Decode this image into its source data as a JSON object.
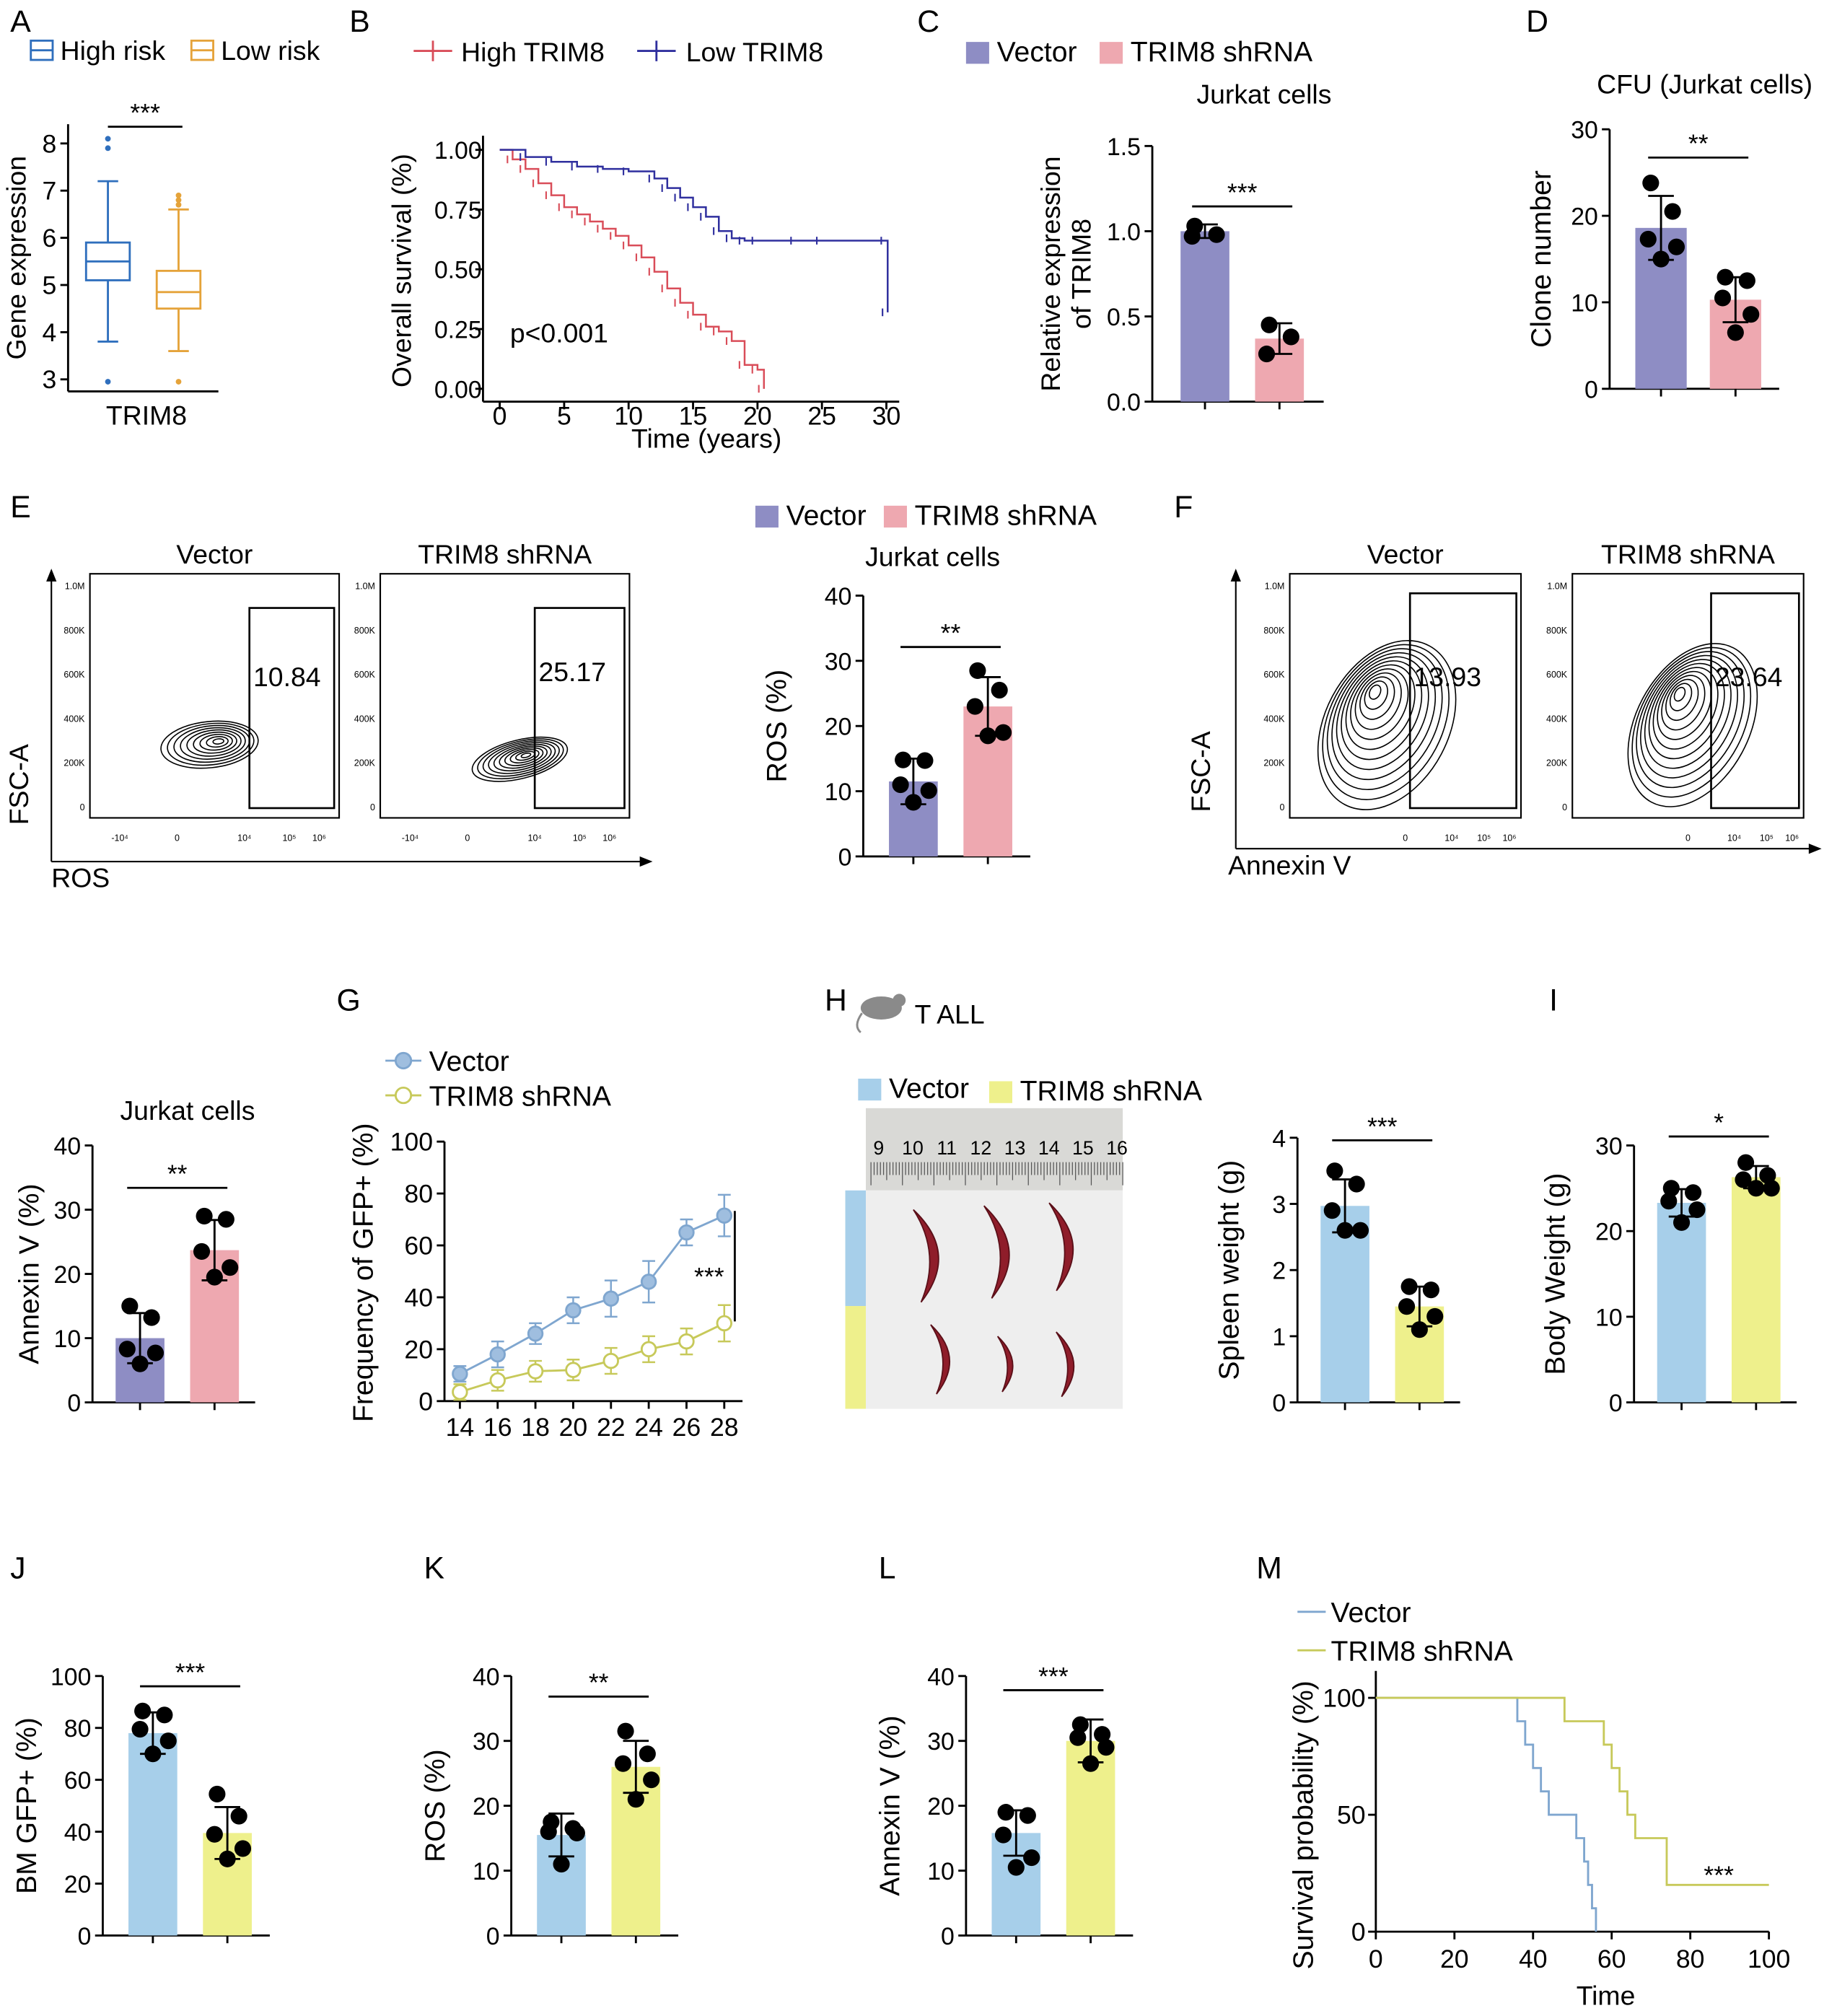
{
  "colors": {
    "purple": "#8e8dc4",
    "pink": "#eea8b0",
    "blue": "#a7cfea",
    "yellow": "#eef08c",
    "boxblue": "#2f6fbd",
    "boxorange": "#e5a33a",
    "kmred": "#d94d59",
    "kmblue": "#2f2f9e",
    "lineblue": "#7fa6cf",
    "lineyellow": "#c7c95a",
    "mred": "#8f1d2a"
  },
  "chart_data": [
    {
      "panel": "A",
      "type": "box",
      "legend": [
        "High risk",
        "Low risk"
      ],
      "ylabel": "Gene expression",
      "xlabel": "TRIM8",
      "ylim": [
        2.8,
        8.3
      ],
      "yticks": [
        "3",
        "4",
        "5",
        "6",
        "7",
        "8"
      ],
      "significance": "***",
      "boxes": [
        {
          "name": "High risk",
          "min": 3.8,
          "q1": 5.1,
          "median": 5.5,
          "q3": 5.9,
          "max": 7.2,
          "outliers": [
            8.1,
            7.9,
            2.95
          ]
        },
        {
          "name": "Low risk",
          "min": 3.6,
          "q1": 4.5,
          "median": 4.85,
          "q3": 5.3,
          "max": 6.6,
          "outliers": [
            6.9,
            6.8,
            6.7,
            2.95
          ]
        }
      ]
    },
    {
      "panel": "B",
      "type": "line",
      "legend": [
        "High TRIM8",
        "Low TRIM8"
      ],
      "ylabel": "Overall survival (%)",
      "xlabel": "Time (years)",
      "xticks": [
        "0",
        "5",
        "10",
        "15",
        "20",
        "25",
        "30"
      ],
      "yticks": [
        "0.00",
        "0.25",
        "0.50",
        "0.75",
        "1.00"
      ],
      "annotation": "p<0.001",
      "series": [
        {
          "name": "High TRIM8",
          "x": [
            0,
            1,
            2,
            3,
            4,
            5,
            6,
            7,
            8,
            9,
            10,
            11,
            12,
            13,
            14,
            15,
            16,
            17,
            18,
            19,
            20,
            20.5
          ],
          "y": [
            1.0,
            0.96,
            0.92,
            0.86,
            0.81,
            0.76,
            0.73,
            0.7,
            0.67,
            0.64,
            0.6,
            0.55,
            0.49,
            0.42,
            0.36,
            0.31,
            0.26,
            0.24,
            0.2,
            0.1,
            0.08,
            0.0
          ]
        },
        {
          "name": "Low TRIM8",
          "x": [
            0,
            2,
            4,
            6,
            8,
            10,
            12,
            13,
            14,
            15,
            16,
            17,
            18,
            19,
            20,
            23,
            25,
            30,
            30.1
          ],
          "y": [
            1.0,
            0.97,
            0.95,
            0.93,
            0.92,
            0.91,
            0.88,
            0.84,
            0.8,
            0.76,
            0.72,
            0.66,
            0.63,
            0.62,
            0.62,
            0.62,
            0.62,
            0.62,
            0.32
          ]
        }
      ]
    },
    {
      "panel": "C",
      "type": "bar",
      "title": "Jurkat cells",
      "legend": [
        "Vector",
        "TRIM8 shRNA"
      ],
      "ylabel": [
        "Relative expression",
        "of TRIM8"
      ],
      "yticks": [
        "0.0",
        "0.5",
        "1.0",
        "1.5"
      ],
      "ylim": [
        0,
        1.5
      ],
      "significance": "***",
      "values": [
        1.0,
        0.37
      ],
      "errors": [
        0.04,
        0.09
      ],
      "points": [
        [
          1.03,
          0.98,
          0.97
        ],
        [
          0.45,
          0.38,
          0.28
        ]
      ]
    },
    {
      "panel": "D",
      "type": "bar",
      "title": "CFU (Jurkat cells)",
      "ylabel": "Clone number",
      "yticks": [
        "0",
        "10",
        "20",
        "30"
      ],
      "ylim": [
        0,
        30
      ],
      "significance": "**",
      "values": [
        18.6,
        10.3
      ],
      "errors": [
        3.7,
        2.6
      ],
      "points": [
        [
          23.8,
          20.5,
          17.3,
          16.4,
          15.0
        ],
        [
          12.9,
          12.5,
          10.5,
          8.6,
          6.5
        ]
      ]
    },
    {
      "panel": "E",
      "type": "bar",
      "title": "Jurkat cells",
      "legend": [
        "Vector",
        "TRIM8 shRNA"
      ],
      "ylabel": "ROS (%)",
      "yticks": [
        "0",
        "10",
        "20",
        "30",
        "40"
      ],
      "ylim": [
        0,
        40
      ],
      "significance": "**",
      "values": [
        11.5,
        23.0
      ],
      "errors": [
        3.5,
        4.5
      ],
      "points": [
        [
          14.8,
          14.7,
          11.0,
          10.1,
          8.3
        ],
        [
          28.5,
          25.5,
          23.0,
          19.0,
          18.5
        ]
      ]
    },
    {
      "panel": "F",
      "type": "bar",
      "title": "Jurkat cells",
      "ylabel": "Annexin V (%)",
      "yticks": [
        "0",
        "10",
        "20",
        "30",
        "40"
      ],
      "ylim": [
        0,
        40
      ],
      "significance": "**",
      "values": [
        10.0,
        23.7
      ],
      "errors": [
        3.9,
        4.7
      ],
      "points": [
        [
          15.0,
          13.2,
          8.3,
          7.7,
          6.0
        ],
        [
          29.0,
          28.5,
          23.5,
          21.0,
          19.5
        ]
      ]
    },
    {
      "panel": "G",
      "type": "line",
      "legend": [
        "Vector",
        "TRIM8 shRNA"
      ],
      "ylabel": "Frequency of GFP+ (%)",
      "x": [
        14,
        16,
        18,
        20,
        22,
        24,
        26,
        28
      ],
      "yticks": [
        "0",
        "20",
        "40",
        "60",
        "80",
        "100"
      ],
      "ylim": [
        0,
        100
      ],
      "significance": "***",
      "series": [
        {
          "name": "Vector",
          "values": [
            10.5,
            18.0,
            26.0,
            35.0,
            39.5,
            46.0,
            65.0,
            71.5
          ],
          "errors": [
            3,
            5,
            4,
            5,
            7,
            8,
            5,
            8
          ]
        },
        {
          "name": "TRIM8 shRNA",
          "values": [
            3.5,
            8.0,
            11.5,
            12.0,
            15.5,
            20.0,
            23.0,
            30.0
          ],
          "errors": [
            3,
            4,
            4,
            4,
            5,
            5,
            5,
            7
          ]
        }
      ]
    },
    {
      "panel": "I-spleen",
      "type": "bar",
      "ylabel": "Spleen weight (g)",
      "yticks": [
        "0",
        "1",
        "2",
        "3",
        "4"
      ],
      "ylim": [
        0,
        4
      ],
      "significance": "***",
      "values": [
        2.97,
        1.45
      ],
      "errors": [
        0.4,
        0.3
      ],
      "points": [
        [
          3.5,
          3.3,
          2.9,
          2.6,
          2.6
        ],
        [
          1.75,
          1.7,
          1.45,
          1.3,
          1.1
        ]
      ]
    },
    {
      "panel": "I",
      "type": "bar",
      "ylabel": "Body Weight (g)",
      "yticks": [
        "0",
        "10",
        "20",
        "30"
      ],
      "ylim": [
        0,
        30
      ],
      "significance": "*",
      "values": [
        23.3,
        26.3
      ],
      "errors": [
        1.6,
        1.3
      ],
      "points": [
        [
          25.0,
          24.5,
          23.5,
          22.5,
          21.0
        ],
        [
          28.0,
          26.5,
          26.0,
          25.0,
          25.0
        ]
      ]
    },
    {
      "panel": "J",
      "type": "bar",
      "ylabel": "BM GFP+ (%)",
      "yticks": [
        "0",
        "20",
        "40",
        "60",
        "80",
        "100"
      ],
      "ylim": [
        0,
        100
      ],
      "significance": "***",
      "values": [
        78.0,
        39.5
      ],
      "errors": [
        8,
        10
      ],
      "points": [
        [
          86.5,
          85.0,
          79.5,
          75.0,
          70.0
        ],
        [
          54.5,
          46.0,
          39.0,
          33.5,
          29.5
        ]
      ]
    },
    {
      "panel": "K",
      "type": "bar",
      "ylabel": "ROS (%)",
      "yticks": [
        "0",
        "10",
        "20",
        "30",
        "40"
      ],
      "ylim": [
        0,
        40
      ],
      "significance": "**",
      "values": [
        15.5,
        26.0
      ],
      "errors": [
        3.3,
        4.0
      ],
      "points": [
        [
          17.5,
          16.5,
          16.0,
          15.8,
          11.0
        ],
        [
          31.5,
          28.0,
          26.5,
          24.0,
          21.0
        ]
      ]
    },
    {
      "panel": "L",
      "type": "bar",
      "ylabel": "Annexin V (%)",
      "yticks": [
        "0",
        "10",
        "20",
        "30",
        "40"
      ],
      "ylim": [
        0,
        40
      ],
      "significance": "***",
      "values": [
        15.8,
        30.0
      ],
      "errors": [
        3.5,
        3.3
      ],
      "points": [
        [
          19.0,
          18.5,
          15.5,
          12.0,
          10.5
        ],
        [
          32.5,
          31.0,
          30.5,
          29.0,
          26.5
        ]
      ]
    },
    {
      "panel": "M",
      "type": "line",
      "legend": [
        "Vector",
        "TRIM8 shRNA"
      ],
      "ylabel": "Survival probability (%)",
      "xlabel": "Time",
      "xticks": [
        "0",
        "20",
        "40",
        "60",
        "80",
        "100"
      ],
      "yticks": [
        "0",
        "50",
        "100"
      ],
      "significance": "***",
      "series": [
        {
          "name": "Vector",
          "x": [
            0,
            35,
            36,
            38,
            40,
            42,
            44,
            50,
            51,
            53,
            54,
            55,
            56
          ],
          "y": [
            100,
            100,
            90,
            80,
            70,
            60,
            50,
            50,
            40,
            30,
            20,
            10,
            0
          ]
        },
        {
          "name": "TRIM8 shRNA",
          "x": [
            0,
            46,
            48,
            50,
            58,
            60,
            62,
            64,
            66,
            74,
            100
          ],
          "y": [
            100,
            100,
            90,
            90,
            80,
            70,
            60,
            50,
            40,
            20,
            20
          ]
        }
      ]
    }
  ],
  "flow": {
    "E": {
      "xlabel": "ROS",
      "ylabel": "FSC-A",
      "panels": [
        {
          "title": "Vector",
          "value": "10.84"
        },
        {
          "title": "TRIM8 shRNA",
          "value": "25.17"
        }
      ],
      "yticks": [
        "1.0M",
        "800K",
        "600K",
        "400K",
        "200K",
        "0"
      ],
      "xticks": [
        "-10⁴",
        "0",
        "10⁴",
        "10⁵",
        "10⁶"
      ]
    },
    "F": {
      "xlabel": "Annexin V",
      "ylabel": "FSC-A",
      "panels": [
        {
          "title": "Vector",
          "value": "13.93"
        },
        {
          "title": "TRIM8 shRNA",
          "value": "23.64"
        }
      ],
      "yticks": [
        "1.0M",
        "800K",
        "600K",
        "400K",
        "200K",
        "0"
      ],
      "xticks": [
        "0",
        "10⁴",
        "10⁵",
        "10⁶"
      ]
    }
  },
  "photo_h": {
    "title": "T ALL",
    "legend": [
      "Vector",
      "TRIM8 shRNA"
    ],
    "ruler": [
      "9",
      "10",
      "11",
      "12",
      "13",
      "14",
      "15",
      "16"
    ]
  },
  "labels": {
    "A": "A",
    "B": "B",
    "C": "C",
    "D": "D",
    "E": "E",
    "F": "F",
    "G": "G",
    "H": "H",
    "I": "I",
    "J": "J",
    "K": "K",
    "L": "L",
    "M": "M"
  }
}
